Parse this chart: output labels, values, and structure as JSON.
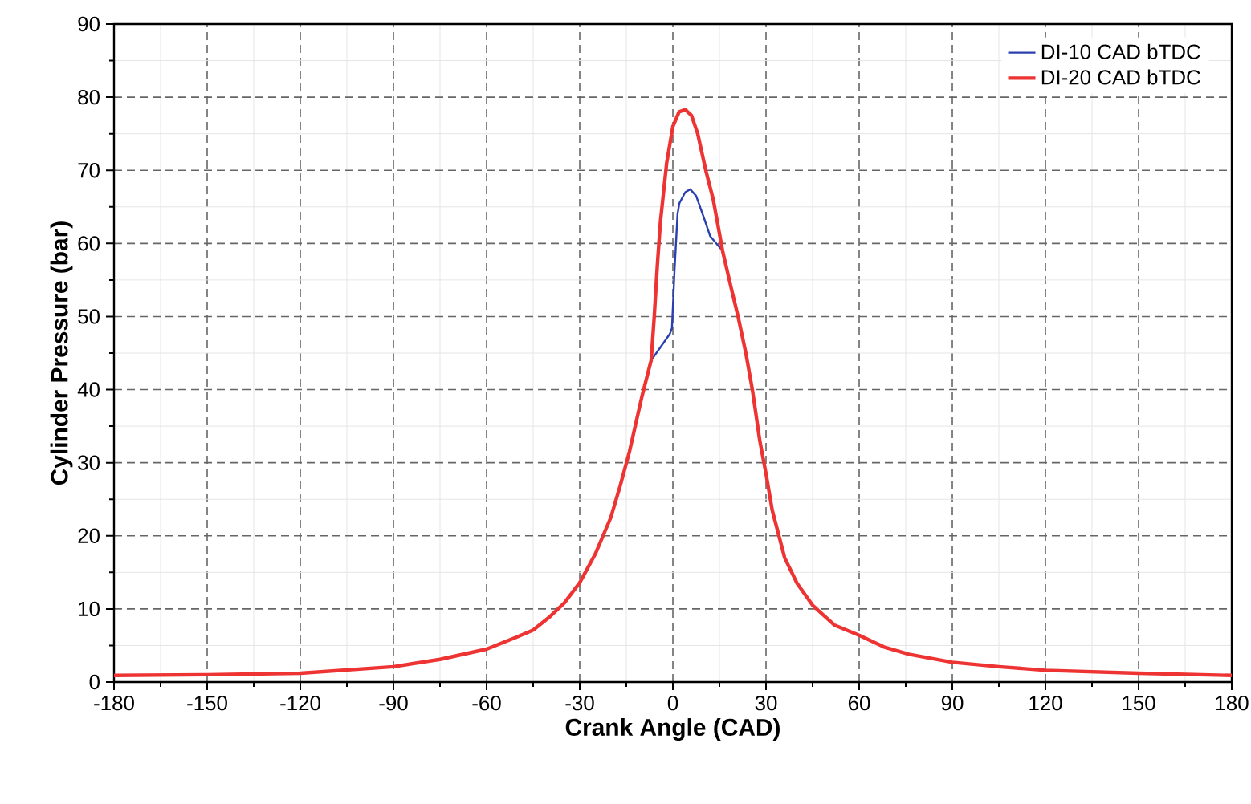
{
  "chart_data": {
    "type": "line",
    "xlabel": "Crank Angle (CAD)",
    "ylabel": "Cylinder Pressure (bar)",
    "xlim": [
      -180,
      180
    ],
    "ylim": [
      0,
      90
    ],
    "xticks": [
      -180,
      -150,
      -120,
      -90,
      -60,
      -30,
      0,
      30,
      60,
      90,
      120,
      150,
      180
    ],
    "yticks": [
      0,
      10,
      20,
      30,
      40,
      50,
      60,
      70,
      80,
      90
    ],
    "grid": true,
    "legend": "top right",
    "line_style": "solid",
    "marker": "none",
    "series": [
      {
        "name": "DI-10 CAD bTDC",
        "color": "#2b3fb0",
        "x": [
          -7,
          -4,
          -1,
          -0.3,
          0.5,
          1.5,
          2.1,
          4,
          5.6,
          7.5,
          10,
          12,
          16
        ],
        "values": [
          44,
          45.8,
          47.6,
          48.4,
          56,
          64,
          65.5,
          67,
          67.4,
          66.5,
          63.5,
          61,
          59
        ]
      },
      {
        "name": "DI-20 CAD bTDC",
        "color": "#ee3333",
        "x": [
          -180,
          -150,
          -120,
          -90,
          -75,
          -60,
          -50,
          -45,
          -40,
          -35,
          -30,
          -25,
          -20,
          -17,
          -14,
          -10,
          -7,
          -6,
          -5,
          -4,
          -2,
          0,
          2,
          4,
          6,
          8,
          10.6,
          13,
          16,
          19,
          21,
          23.5,
          25.6,
          28,
          30,
          32,
          36,
          40,
          45,
          52,
          60,
          68,
          76,
          90,
          105,
          120,
          150,
          180
        ],
        "values": [
          0.9,
          1.0,
          1.2,
          2.1,
          3.1,
          4.5,
          6.2,
          7.1,
          8.8,
          10.8,
          13.6,
          17.5,
          22.5,
          26.8,
          31.5,
          39,
          44,
          50,
          57,
          63,
          71,
          76,
          78,
          78.3,
          77.5,
          75,
          70,
          66,
          59,
          53.5,
          50,
          45,
          40,
          33,
          28.5,
          23.5,
          17,
          13.5,
          10.5,
          7.8,
          6.4,
          4.8,
          3.8,
          2.7,
          2.1,
          1.6,
          1.2,
          0.9
        ]
      }
    ]
  }
}
